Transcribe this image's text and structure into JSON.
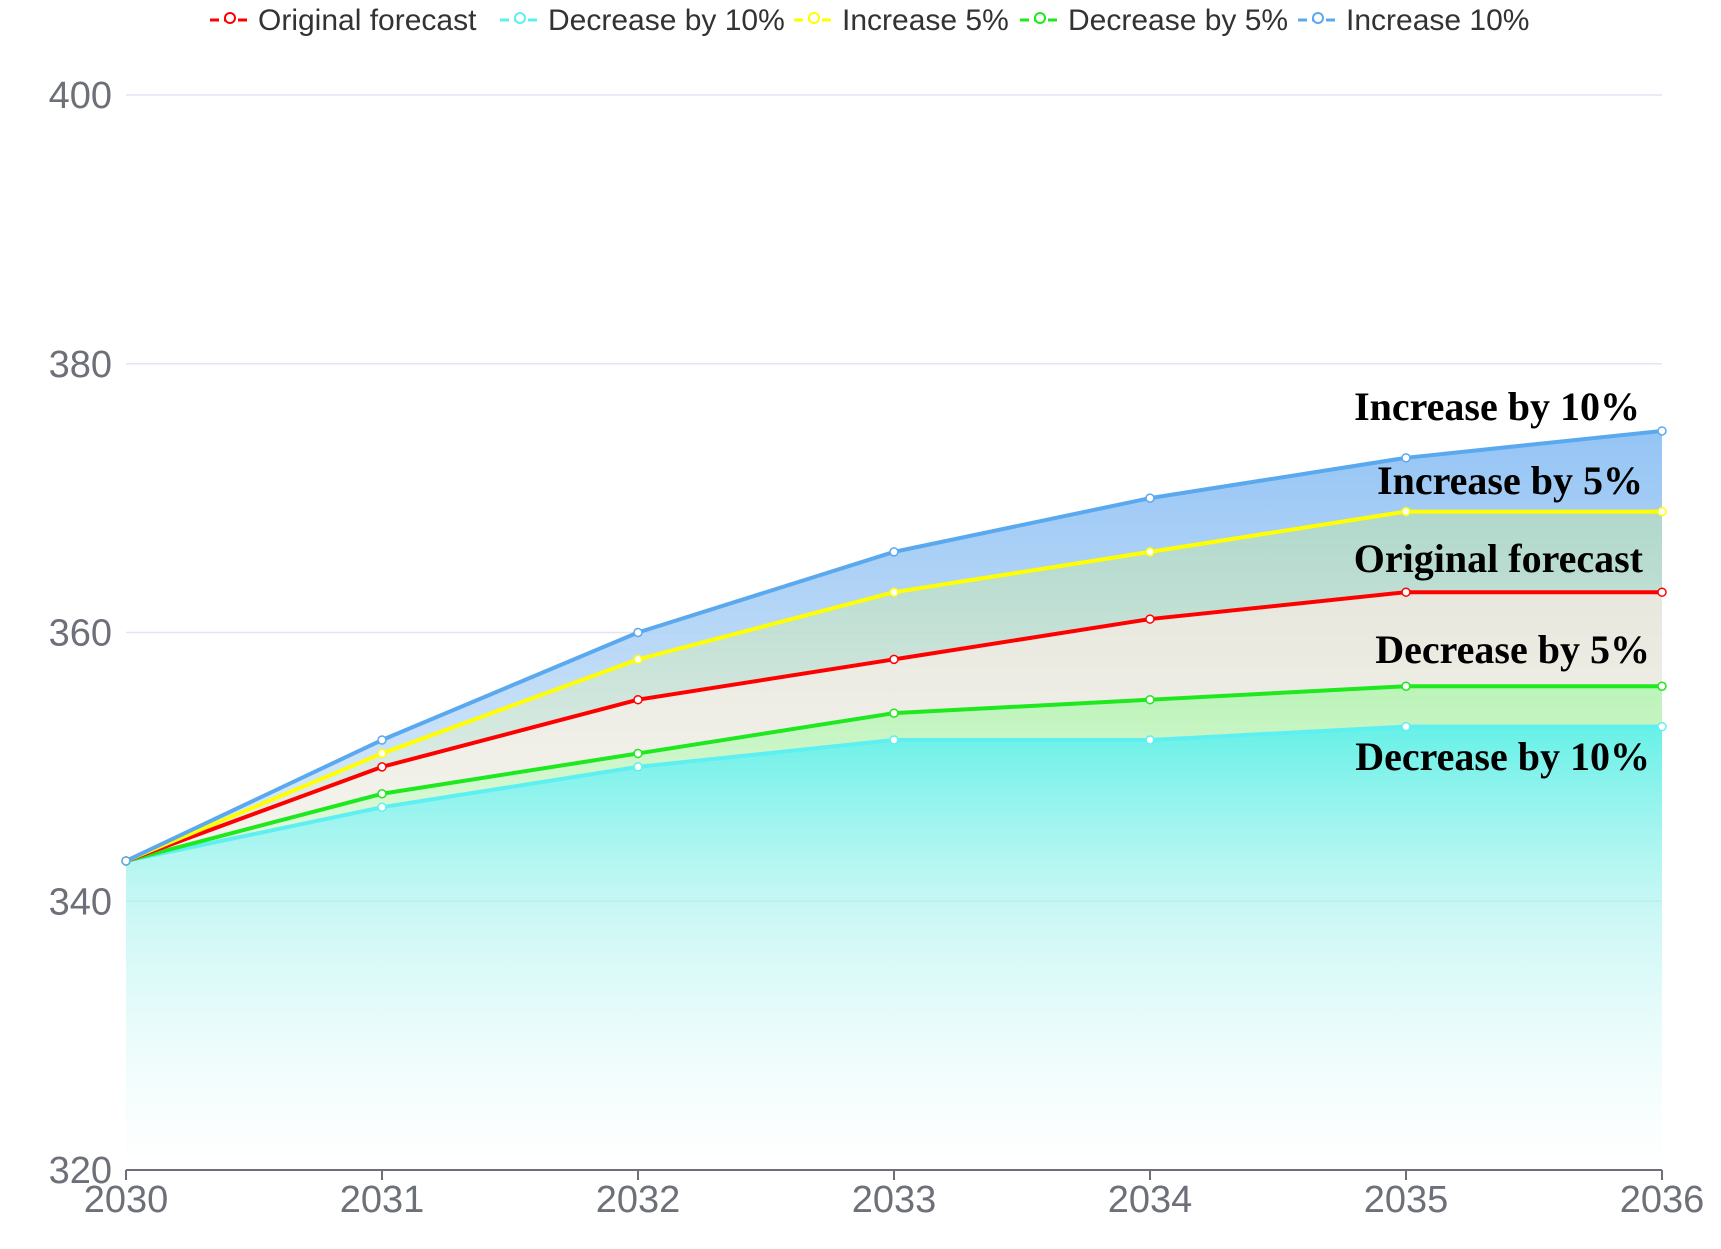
{
  "chart_data": {
    "type": "area",
    "x": [
      "2030",
      "2031",
      "2032",
      "2033",
      "2034",
      "2035",
      "2036"
    ],
    "ylim": [
      320,
      400
    ],
    "yticks": [
      "400",
      "380",
      "360",
      "340",
      "320"
    ],
    "grid": true,
    "legend_position": "top-center",
    "series": [
      {
        "key": "orig",
        "name": "Original forecast",
        "color": "#ff0000",
        "values": [
          343,
          350,
          355,
          358,
          361,
          363,
          363
        ]
      },
      {
        "key": "dec10",
        "name": "Decrease by 10%",
        "color": "#5ef0f0",
        "values": [
          343,
          347,
          350,
          352,
          352,
          353,
          353
        ]
      },
      {
        "key": "inc5",
        "name": "Increase 5%",
        "color": "#ffff00",
        "values": [
          343,
          351,
          358,
          363,
          366,
          369,
          369
        ]
      },
      {
        "key": "dec5",
        "name": "Decrease by 5%",
        "color": "#1ee81e",
        "values": [
          343,
          348,
          351,
          354,
          355,
          356,
          356
        ]
      },
      {
        "key": "inc10",
        "name": "Increase 10%",
        "color": "#5aa9ef",
        "values": [
          343,
          352,
          360,
          366,
          370,
          373,
          375
        ]
      }
    ],
    "annotations": [
      {
        "text": "Increase by 10%",
        "series": "inc10"
      },
      {
        "text": "Increase by 5%",
        "series": "inc5"
      },
      {
        "text": "Original forecast",
        "series": "orig"
      },
      {
        "text": "Decrease by 5%",
        "series": "dec5"
      },
      {
        "text": "Decrease by 10%",
        "series": "dec10"
      }
    ]
  }
}
